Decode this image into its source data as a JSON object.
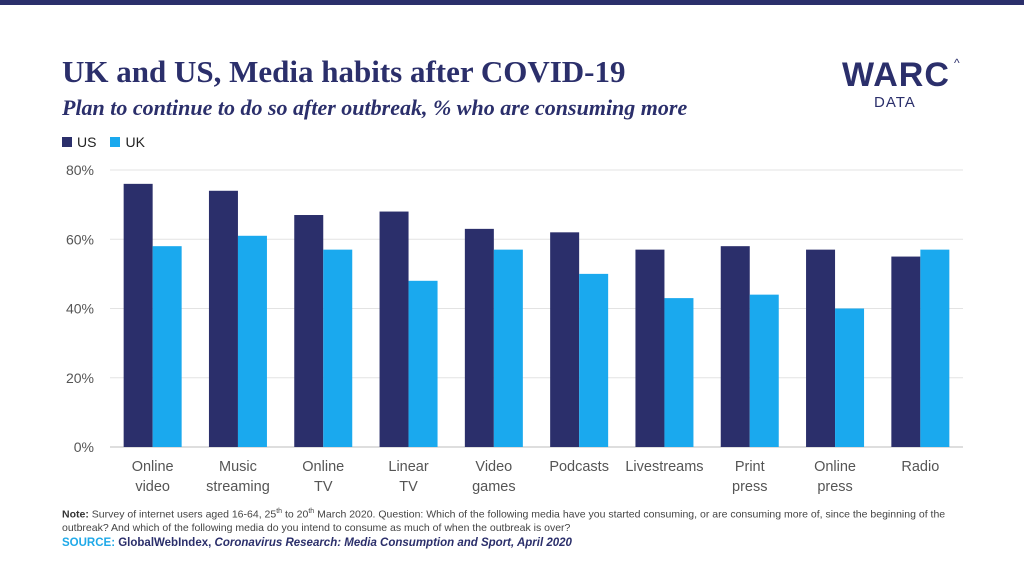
{
  "header": {
    "title": "UK and US, Media habits after COVID-19",
    "subtitle": "Plan to continue to do so after outbreak, % who are consuming more"
  },
  "logo": {
    "word": "WARC",
    "sub": "DATA",
    "caret": "^"
  },
  "footer": {
    "note_label": "Note:",
    "note_part1": "Survey of internet users aged 16-64, 25",
    "note_sup1": "th",
    "note_part2": " to 20",
    "note_sup2": "th",
    "note_part3": " March 2020. Question: Which of the following media have you started consuming, or are consuming more of, since the beginning of the outbreak? And which of the following media do you intend to consume as much of when the outbreak is over?",
    "source_label": "SOURCE:",
    "source_name": "GlobalWebIndex,",
    "source_title": "Coronavirus Research: Media Consumption and Sport, April 2020"
  },
  "chart_data": {
    "type": "bar",
    "categories": [
      [
        "Online",
        "video"
      ],
      [
        "Music",
        "streaming"
      ],
      [
        "Online",
        "TV"
      ],
      [
        "Linear",
        "TV"
      ],
      [
        "Video",
        "games"
      ],
      [
        "Podcasts"
      ],
      [
        "Livestreams"
      ],
      [
        "Print",
        "press"
      ],
      [
        "Online",
        "press"
      ],
      [
        "Radio"
      ]
    ],
    "series": [
      {
        "name": "US",
        "color": "#2b2f6b",
        "values": [
          76,
          74,
          67,
          68,
          63,
          62,
          57,
          58,
          57,
          55
        ]
      },
      {
        "name": "UK",
        "color": "#1aa9ee",
        "values": [
          58,
          61,
          57,
          48,
          57,
          50,
          43,
          44,
          40,
          57
        ]
      }
    ],
    "y_ticks": [
      "0%",
      "20%",
      "40%",
      "60%",
      "80%"
    ],
    "ylim": [
      0,
      80
    ],
    "grid": true,
    "legend": "top-left"
  }
}
